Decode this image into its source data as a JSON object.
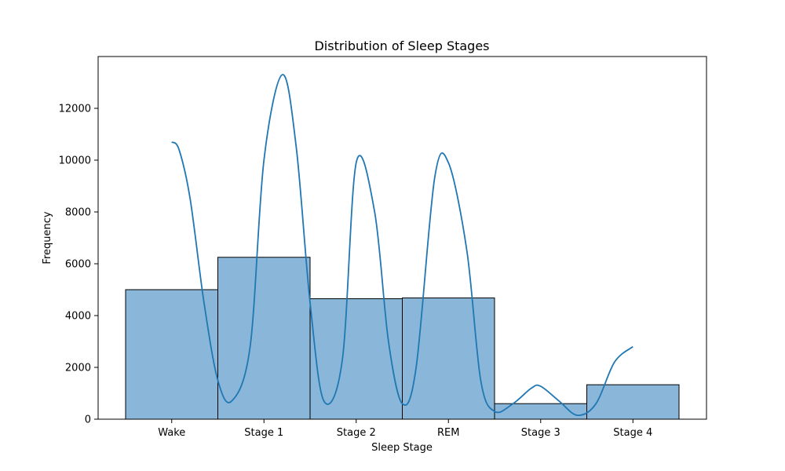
{
  "chart_data": {
    "type": "bar",
    "title": "Distribution of Sleep Stages",
    "xlabel": "Sleep Stage",
    "ylabel": "Frequency",
    "categories": [
      "Wake",
      "Stage 1",
      "Stage 2",
      "REM",
      "Stage 3",
      "Stage 4"
    ],
    "values": [
      5000,
      6250,
      4650,
      4680,
      600,
      1330
    ],
    "ylim": [
      0,
      14000
    ],
    "yticks": [
      0,
      2000,
      4000,
      6000,
      8000,
      10000,
      12000
    ],
    "kde": {
      "x": [
        0.0,
        0.08,
        0.2,
        0.35,
        0.5,
        0.65,
        0.85,
        1.0,
        1.2,
        1.35,
        1.5,
        1.65,
        1.85,
        2.0,
        2.2,
        2.35,
        2.5,
        2.65,
        2.85,
        3.0,
        3.2,
        3.35,
        3.5,
        3.7,
        3.9,
        4.0,
        4.2,
        4.4,
        4.6,
        4.8,
        5.0
      ],
      "y": [
        10700,
        10400,
        8500,
        4500,
        1500,
        700,
        2800,
        10000,
        13300,
        10500,
        4500,
        700,
        2300,
        9900,
        8000,
        3000,
        600,
        2000,
        9300,
        9900,
        6500,
        1500,
        300,
        600,
        1200,
        1270,
        700,
        150,
        600,
        2200,
        2800
      ]
    },
    "bar_color": "#8ab7d9",
    "bar_edge": "#000000",
    "kde_color": "#1f77b4",
    "grid": false,
    "legend": "none"
  }
}
